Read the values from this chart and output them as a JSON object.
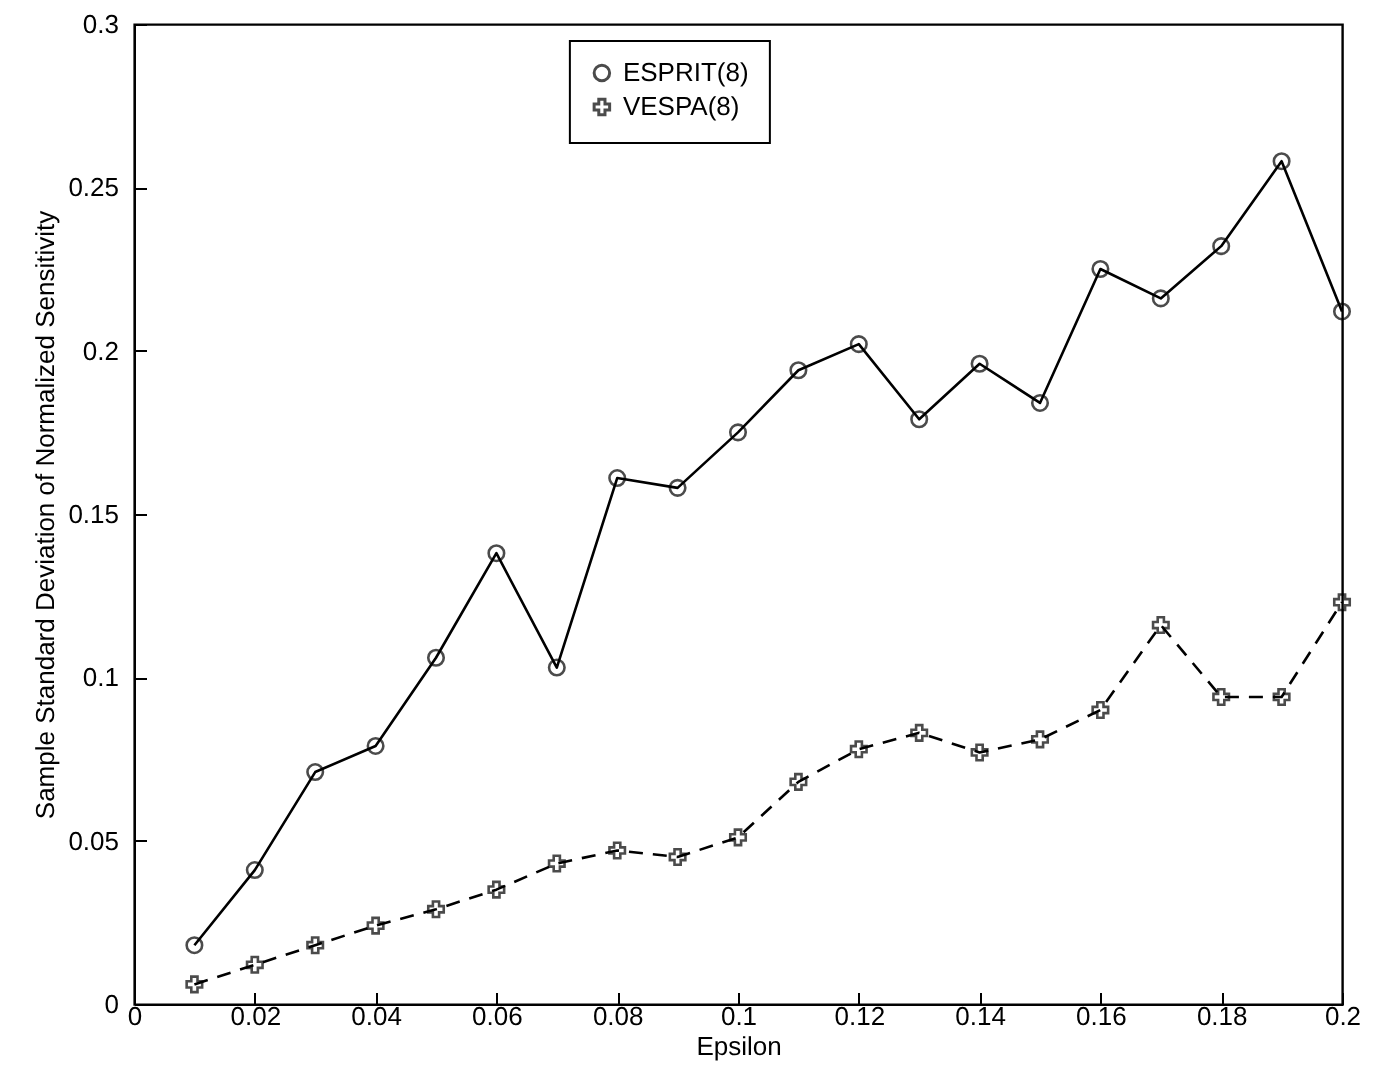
{
  "chart_data": {
    "type": "line",
    "xlabel": "Epsilon",
    "ylabel": "Sample Standard Deviation of Normalized Sensitivity",
    "x": [
      0.01,
      0.02,
      0.03,
      0.04,
      0.05,
      0.06,
      0.07,
      0.08,
      0.09,
      0.1,
      0.11,
      0.12,
      0.13,
      0.14,
      0.15,
      0.16,
      0.17,
      0.18,
      0.19,
      0.2
    ],
    "series": [
      {
        "name": "ESPRIT(8)",
        "color": "#000000",
        "marker": "circle",
        "line_style": "solid",
        "values": [
          0.018,
          0.041,
          0.071,
          0.079,
          0.106,
          0.138,
          0.103,
          0.161,
          0.158,
          0.175,
          0.194,
          0.202,
          0.179,
          0.196,
          0.184,
          0.225,
          0.216,
          0.232,
          0.258,
          0.212
        ]
      },
      {
        "name": "VESPA(8)",
        "color": "#000000",
        "marker": "cross",
        "line_style": "dashed",
        "values": [
          0.006,
          0.012,
          0.018,
          0.024,
          0.029,
          0.035,
          0.043,
          0.047,
          0.045,
          0.051,
          0.068,
          0.078,
          0.083,
          0.077,
          0.081,
          0.09,
          0.116,
          0.094,
          0.094,
          0.123
        ]
      }
    ],
    "xlim": [
      0,
      0.2
    ],
    "xticks": [
      0,
      0.02,
      0.04,
      0.06,
      0.08,
      0.1,
      0.12,
      0.14,
      0.16,
      0.18,
      0.2
    ],
    "ylim": [
      0,
      0.3
    ],
    "yticks": [
      0,
      0.05,
      0.1,
      0.15,
      0.2,
      0.25,
      0.3
    ],
    "grid": false,
    "legend": "top"
  }
}
